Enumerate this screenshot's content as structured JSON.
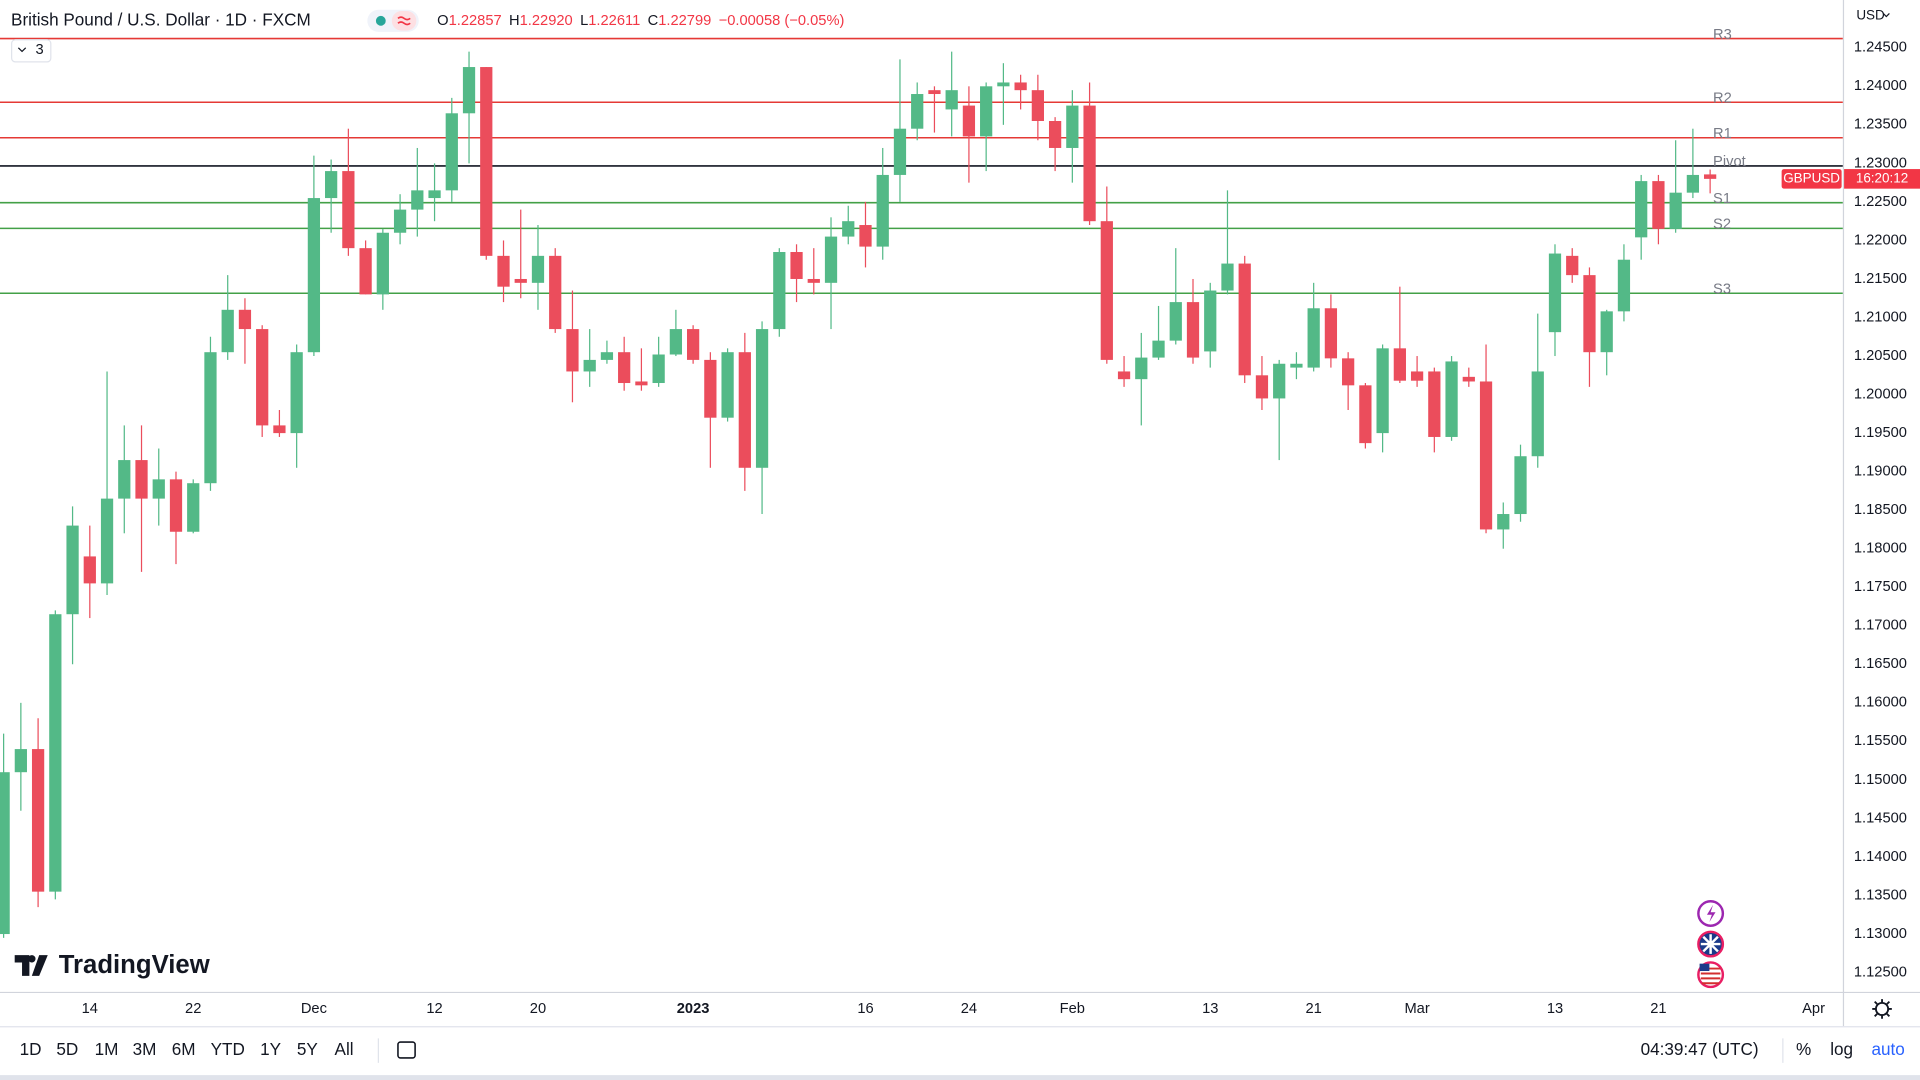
{
  "header": {
    "title": "British Pound / U.S. Dollar · 1D · FXCM",
    "ohlc": [
      {
        "label": "O",
        "value": "1.22857"
      },
      {
        "label": "H",
        "value": "1.22920"
      },
      {
        "label": "L",
        "value": "1.22611"
      },
      {
        "label": "C",
        "value": "1.22799"
      }
    ],
    "change": "−0.00058 (−0.05%)",
    "indicators": "3",
    "currency": "USD"
  },
  "chart_data": {
    "type": "candlestick",
    "symbol": "GBPUSD",
    "countdown": "16:20:12",
    "up_color": "#53b987",
    "down_color": "#eb4d5c",
    "open": [
      1.13,
      1.151,
      1.154,
      1.1355,
      1.1715,
      1.179,
      1.1755,
      1.1865,
      1.1915,
      1.1865,
      1.189,
      1.1822,
      1.1885,
      1.2055,
      1.211,
      1.2085,
      1.196,
      1.195,
      1.2055,
      1.2255,
      1.229,
      1.219,
      1.213,
      1.221,
      1.224,
      1.2255,
      1.2265,
      1.2365,
      1.2425,
      1.218,
      1.215,
      1.2145,
      1.218,
      1.2085,
      1.203,
      1.2045,
      1.2055,
      1.2017,
      1.2015,
      1.2052,
      1.2085,
      1.2045,
      1.197,
      1.2055,
      1.1905,
      1.2085,
      1.2185,
      1.215,
      1.2145,
      1.2205,
      1.222,
      1.2192,
      1.2285,
      1.2345,
      1.2395,
      1.237,
      1.2375,
      1.2335,
      1.24,
      1.2405,
      1.2395,
      1.2355,
      1.232,
      1.2375,
      1.2225,
      1.203,
      1.202,
      1.2048,
      1.207,
      1.212,
      1.2056,
      1.2135,
      1.217,
      1.2025,
      1.1995,
      1.2035,
      1.2035,
      1.2112,
      1.2047,
      1.2012,
      1.195,
      1.206,
      1.203,
      1.203,
      1.1945,
      1.2023,
      1.2017,
      1.1825,
      1.1845,
      1.192,
      1.2081,
      1.218,
      1.2155,
      1.2055,
      1.2108,
      1.2204,
      1.2277,
      1.2215,
      1.2262,
      1.22857
    ],
    "high": [
      1.156,
      1.16,
      1.158,
      1.172,
      1.1855,
      1.183,
      1.203,
      1.196,
      1.196,
      1.193,
      1.19,
      1.189,
      1.2075,
      1.2155,
      1.2125,
      1.209,
      1.198,
      1.2065,
      1.231,
      1.2305,
      1.2345,
      1.22,
      1.2215,
      1.226,
      1.232,
      1.23,
      1.2385,
      1.2445,
      1.2425,
      1.22,
      1.224,
      1.222,
      1.219,
      1.2135,
      1.2085,
      1.207,
      1.2075,
      1.206,
      1.2075,
      1.211,
      1.209,
      1.2055,
      1.206,
      1.208,
      1.2095,
      1.219,
      1.2195,
      1.219,
      1.223,
      1.2245,
      1.225,
      1.232,
      1.2435,
      1.2405,
      1.24,
      1.2445,
      1.24,
      1.2405,
      1.243,
      1.2415,
      1.2415,
      1.236,
      1.2395,
      1.2405,
      1.227,
      1.205,
      1.208,
      1.2115,
      1.219,
      1.215,
      1.2145,
      1.2265,
      1.218,
      1.205,
      1.2045,
      1.2055,
      1.2145,
      1.213,
      1.2055,
      1.2015,
      1.2065,
      1.214,
      1.205,
      1.2035,
      1.205,
      1.2035,
      1.2065,
      1.186,
      1.1935,
      1.2105,
      1.2195,
      1.219,
      1.2165,
      1.211,
      1.2195,
      1.2285,
      1.2285,
      1.233,
      1.2345,
      1.2292
    ],
    "low": [
      1.1295,
      1.146,
      1.1335,
      1.1345,
      1.165,
      1.171,
      1.174,
      1.182,
      1.177,
      1.183,
      1.178,
      1.182,
      1.1875,
      1.2045,
      1.204,
      1.1945,
      1.1945,
      1.1905,
      1.205,
      1.221,
      1.218,
      1.213,
      1.211,
      1.2195,
      1.2205,
      1.2225,
      1.225,
      1.23,
      1.2175,
      1.212,
      1.2125,
      1.211,
      1.208,
      1.199,
      1.201,
      1.204,
      1.2005,
      1.2005,
      1.201,
      1.205,
      1.204,
      1.1905,
      1.1965,
      1.1875,
      1.1845,
      1.2075,
      1.212,
      1.213,
      1.2085,
      1.2195,
      1.2165,
      1.2175,
      1.225,
      1.233,
      1.234,
      1.2335,
      1.2275,
      1.229,
      1.235,
      1.237,
      1.233,
      1.229,
      1.2275,
      1.222,
      1.204,
      1.201,
      1.196,
      1.2045,
      1.2065,
      1.204,
      1.2035,
      1.213,
      1.2015,
      1.198,
      1.1915,
      1.202,
      1.203,
      1.2035,
      1.198,
      1.193,
      1.1925,
      1.2015,
      1.201,
      1.1925,
      1.194,
      1.201,
      1.182,
      1.18,
      1.1835,
      1.1905,
      1.205,
      1.2145,
      1.201,
      1.2025,
      1.2095,
      1.2175,
      1.2195,
      1.221,
      1.2255,
      1.22611
    ],
    "close": [
      1.151,
      1.154,
      1.1355,
      1.1715,
      1.183,
      1.1755,
      1.1865,
      1.1915,
      1.1865,
      1.189,
      1.1822,
      1.1885,
      1.2055,
      1.211,
      1.2085,
      1.196,
      1.195,
      1.2055,
      1.2255,
      1.229,
      1.219,
      1.213,
      1.221,
      1.224,
      1.2265,
      1.2265,
      1.2365,
      1.2425,
      1.218,
      1.214,
      1.2145,
      1.218,
      1.2085,
      1.203,
      1.2045,
      1.2055,
      1.2015,
      1.2012,
      1.2052,
      1.2085,
      1.2045,
      1.197,
      1.2055,
      1.1905,
      1.2085,
      1.2185,
      1.215,
      1.2145,
      1.2205,
      1.2225,
      1.2192,
      1.2285,
      1.2345,
      1.239,
      1.239,
      1.2395,
      1.2335,
      1.24,
      1.2405,
      1.2395,
      1.2355,
      1.232,
      1.2375,
      1.2225,
      1.2045,
      1.202,
      1.2048,
      1.207,
      1.212,
      1.2048,
      1.2135,
      1.217,
      1.2025,
      1.1995,
      1.204,
      1.204,
      1.2112,
      1.2047,
      1.2012,
      1.1937,
      1.206,
      1.2018,
      1.2018,
      1.1945,
      1.2043,
      1.2017,
      1.1825,
      1.1845,
      1.192,
      1.203,
      1.2183,
      1.2155,
      1.2055,
      1.2108,
      1.2175,
      1.2277,
      1.2215,
      1.2262,
      1.2285,
      1.22799
    ],
    "levels": [
      {
        "name": "R3",
        "value": 1.2463,
        "color": "#e53935"
      },
      {
        "name": "R2",
        "value": 1.238,
        "color": "#e53935"
      },
      {
        "name": "R1",
        "value": 1.2334,
        "color": "#e53935"
      },
      {
        "name": "Pivot",
        "value": 1.2297,
        "color": "#131722"
      },
      {
        "name": "S1",
        "value": 1.225,
        "color": "#43a047"
      },
      {
        "name": "S2",
        "value": 1.2217,
        "color": "#43a047"
      },
      {
        "name": "S3",
        "value": 1.2132,
        "color": "#43a047"
      }
    ],
    "xlim": [
      -0.21,
      106.7
    ],
    "xticks": [
      {
        "value": 5,
        "label": "14"
      },
      {
        "value": 11,
        "label": "22"
      },
      {
        "value": 18,
        "label": "Dec"
      },
      {
        "value": 25,
        "label": "12"
      },
      {
        "value": 31,
        "label": "20"
      },
      {
        "value": 40,
        "label": "2023"
      },
      {
        "value": 50,
        "label": "16"
      },
      {
        "value": 56,
        "label": "24"
      },
      {
        "value": 62,
        "label": "Feb"
      },
      {
        "value": 70,
        "label": "13"
      },
      {
        "value": 76,
        "label": "21"
      },
      {
        "value": 82,
        "label": "Mar"
      },
      {
        "value": 90,
        "label": "13"
      },
      {
        "value": 96,
        "label": "21"
      },
      {
        "value": 105,
        "label": "Apr"
      }
    ],
    "ylim": [
      1.1225,
      1.2512
    ],
    "yticks": [
      {
        "value": 1.245,
        "label": "1.24500"
      },
      {
        "value": 1.24,
        "label": "1.24000"
      },
      {
        "value": 1.235,
        "label": "1.23500"
      },
      {
        "value": 1.23,
        "label": "1.23000"
      },
      {
        "value": 1.225,
        "label": "1.22500"
      },
      {
        "value": 1.22,
        "label": "1.22000"
      },
      {
        "value": 1.215,
        "label": "1.21500"
      },
      {
        "value": 1.21,
        "label": "1.21000"
      },
      {
        "value": 1.205,
        "label": "1.20500"
      },
      {
        "value": 1.2,
        "label": "1.20000"
      },
      {
        "value": 1.195,
        "label": "1.19500"
      },
      {
        "value": 1.19,
        "label": "1.19000"
      },
      {
        "value": 1.185,
        "label": "1.18500"
      },
      {
        "value": 1.18,
        "label": "1.18000"
      },
      {
        "value": 1.175,
        "label": "1.17500"
      },
      {
        "value": 1.17,
        "label": "1.17000"
      },
      {
        "value": 1.165,
        "label": "1.16500"
      },
      {
        "value": 1.16,
        "label": "1.16000"
      },
      {
        "value": 1.155,
        "label": "1.15500"
      },
      {
        "value": 1.15,
        "label": "1.15000"
      },
      {
        "value": 1.145,
        "label": "1.14500"
      },
      {
        "value": 1.14,
        "label": "1.14000"
      },
      {
        "value": 1.135,
        "label": "1.13500"
      },
      {
        "value": 1.13,
        "label": "1.13000"
      },
      {
        "value": 1.125,
        "label": "1.12500"
      }
    ]
  },
  "logo": "TradingView",
  "toolbar": {
    "ranges": [
      "1D",
      "5D",
      "1M",
      "3M",
      "6M",
      "YTD",
      "1Y",
      "5Y",
      "All"
    ],
    "clock": "04:39:47 (UTC)",
    "scale_options": [
      "%",
      "log",
      "auto"
    ]
  }
}
